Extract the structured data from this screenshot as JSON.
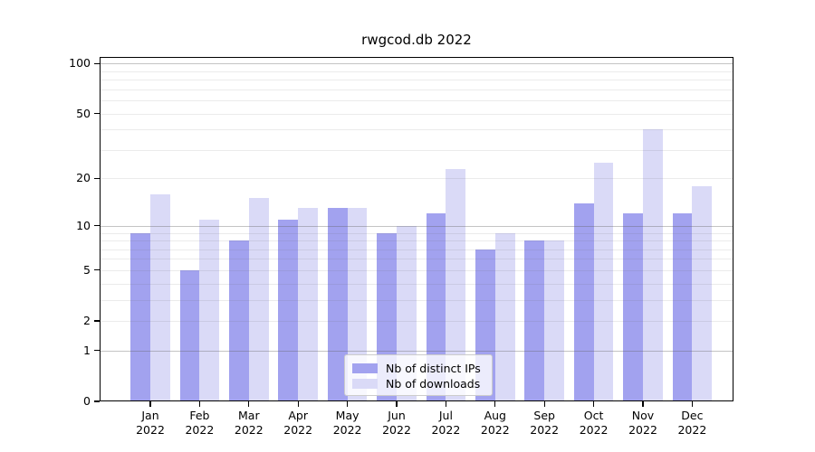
{
  "figure": {
    "background": "#ffffff"
  },
  "chart_data": {
    "type": "bar",
    "title": "rwgcod.db 2022",
    "categories": [
      "Jan 2022",
      "Feb 2022",
      "Mar 2022",
      "Apr 2022",
      "May 2022",
      "Jun 2022",
      "Jul 2022",
      "Aug 2022",
      "Sep 2022",
      "Oct 2022",
      "Nov 2022",
      "Dec 2022"
    ],
    "series": [
      {
        "name": "Nb of distinct IPs",
        "color": "#a2a2ef",
        "values": [
          9,
          5,
          8,
          11,
          13,
          9,
          12,
          7,
          8,
          14,
          12,
          12
        ]
      },
      {
        "name": "Nb of downloads",
        "color": "#dadaf7",
        "values": [
          16,
          11,
          15,
          13,
          13,
          10,
          23,
          9,
          8,
          25,
          40,
          18
        ]
      }
    ],
    "xlabel": "",
    "ylabel": "",
    "y_axis": {
      "scale": "log(1+x)",
      "ticks": [
        0,
        1,
        2,
        5,
        10,
        20,
        50,
        100
      ],
      "major_gridlines": [
        1,
        10,
        100
      ],
      "minor_gridlines": [
        2,
        3,
        4,
        5,
        6,
        7,
        8,
        9,
        20,
        30,
        40,
        50,
        60,
        70,
        80,
        90
      ],
      "ylim": [
        0,
        110
      ]
    },
    "grid": "on",
    "legend_position": "lower center",
    "colors": {
      "axis": "#000000",
      "grid_major": "#c4c4c4",
      "grid_minor": "#ebebeb",
      "background": "#ffffff"
    }
  }
}
